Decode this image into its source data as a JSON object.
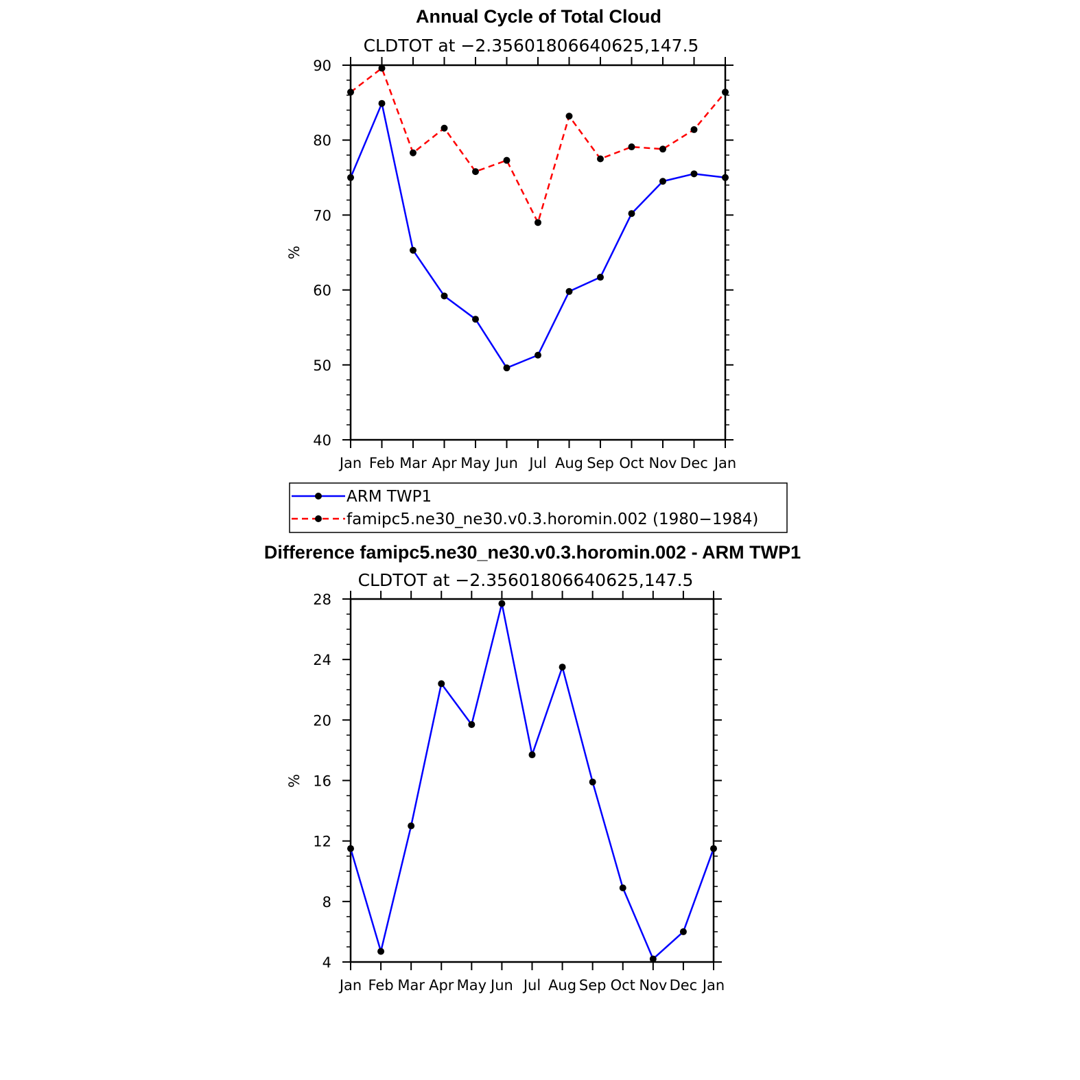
{
  "chart_data": [
    {
      "type": "line",
      "title": "Annual Cycle of Total Cloud",
      "subtitle": "CLDTOT at −2.35601806640625,147.5",
      "ylabel": "%",
      "xlabel": "",
      "ylim": [
        40,
        90
      ],
      "yticks": [
        "40",
        "50",
        "60",
        "70",
        "80",
        "90"
      ],
      "categories": [
        "Jan",
        "Feb",
        "Mar",
        "Apr",
        "May",
        "Jun",
        "Jul",
        "Aug",
        "Sep",
        "Oct",
        "Nov",
        "Dec",
        "Jan"
      ],
      "series": [
        {
          "name": "ARM TWP1",
          "color": "#0000ff",
          "dash": "solid",
          "values": [
            75.0,
            84.9,
            65.3,
            59.2,
            56.1,
            49.6,
            51.3,
            59.8,
            61.7,
            70.2,
            74.5,
            75.5,
            75.0
          ]
        },
        {
          "name": "famipc5.ne30_ne30.v0.3.horomin.002 (1980−1984)",
          "color": "#ff0000",
          "dash": "dashed",
          "values": [
            86.4,
            89.6,
            78.3,
            81.6,
            75.8,
            77.3,
            69.0,
            83.2,
            77.5,
            79.1,
            78.8,
            81.4,
            86.4
          ]
        }
      ],
      "legend_position": "below"
    },
    {
      "type": "line",
      "title": "Difference famipc5.ne30_ne30.v0.3.horomin.002 - ARM TWP1",
      "subtitle": "CLDTOT at −2.35601806640625,147.5",
      "ylabel": "%",
      "xlabel": "",
      "ylim": [
        4,
        28
      ],
      "yticks": [
        "4",
        "8",
        "12",
        "16",
        "20",
        "24",
        "28"
      ],
      "categories": [
        "Jan",
        "Feb",
        "Mar",
        "Apr",
        "May",
        "Jun",
        "Jul",
        "Aug",
        "Sep",
        "Oct",
        "Nov",
        "Dec",
        "Jan"
      ],
      "series": [
        {
          "color": "#0000ff",
          "dash": "solid",
          "values": [
            11.5,
            4.7,
            13.0,
            22.4,
            19.7,
            27.7,
            17.7,
            23.5,
            15.9,
            8.9,
            4.2,
            6.0,
            11.5
          ]
        }
      ]
    }
  ]
}
